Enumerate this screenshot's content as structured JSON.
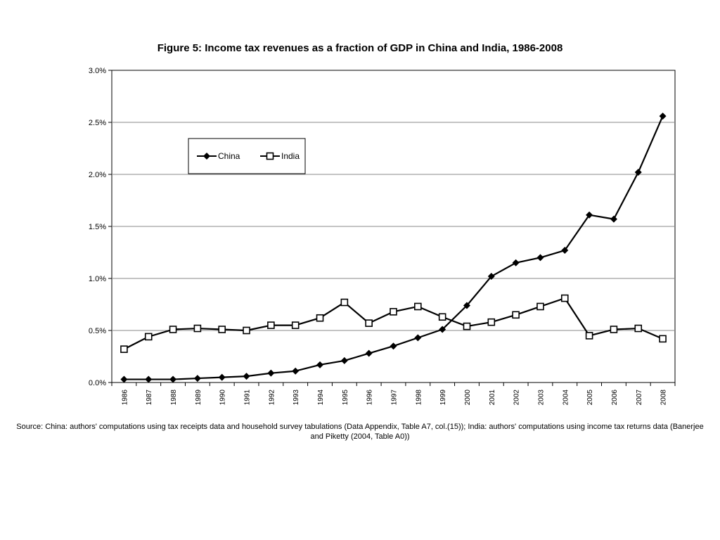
{
  "chart_data": {
    "type": "line",
    "title": "Figure 5: Income tax revenues as a fraction of GDP in China and India, 1986-2008",
    "categories": [
      "1986",
      "1987",
      "1988",
      "1989",
      "1990",
      "1991",
      "1992",
      "1993",
      "1994",
      "1995",
      "1996",
      "1997",
      "1998",
      "1999",
      "2000",
      "2001",
      "2002",
      "2003",
      "2004",
      "2005",
      "2006",
      "2007",
      "2008"
    ],
    "series": [
      {
        "name": "China",
        "marker": "filled-diamond",
        "color": "#000000",
        "values": [
          0.03,
          0.03,
          0.03,
          0.04,
          0.05,
          0.06,
          0.09,
          0.11,
          0.17,
          0.21,
          0.28,
          0.35,
          0.43,
          0.51,
          0.74,
          1.02,
          1.15,
          1.2,
          1.27,
          1.61,
          1.57,
          2.02,
          2.56
        ]
      },
      {
        "name": "India",
        "marker": "open-square",
        "color": "#000000",
        "values": [
          0.32,
          0.44,
          0.51,
          0.52,
          0.51,
          0.5,
          0.55,
          0.55,
          0.62,
          0.77,
          0.57,
          0.68,
          0.73,
          0.63,
          0.54,
          0.58,
          0.65,
          0.73,
          0.81,
          0.45,
          0.51,
          0.52,
          0.42
        ]
      }
    ],
    "ylim": [
      0,
      3.0
    ],
    "yticks": [
      0,
      0.5,
      1.0,
      1.5,
      2.0,
      2.5,
      3.0
    ],
    "ytick_labels": [
      "0.0%",
      "0.5%",
      "1.0%",
      "1.5%",
      "2.0%",
      "2.5%",
      "3.0%"
    ],
    "xlabel": "",
    "ylabel": "",
    "grid": true,
    "legend_position": "upper-left",
    "source_note": "Source: China: authors' computations using tax receipts data and household survey tabulations (Data Appendix, Table A7, col.(15)); India: authors' computations using income tax returns data (Banerjee and Piketty (2004, Table A0))"
  }
}
